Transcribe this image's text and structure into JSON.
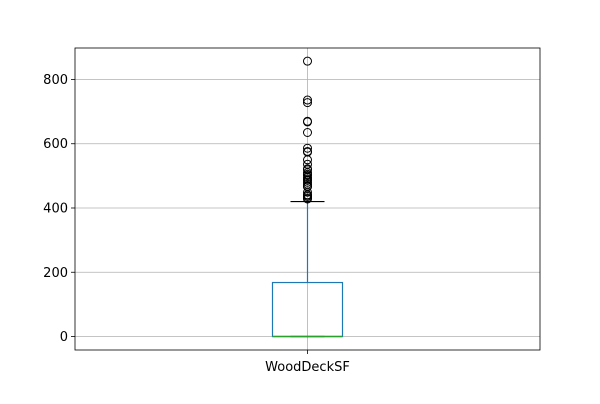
{
  "chart_data": {
    "type": "box",
    "title": "",
    "xlabel": "",
    "ylabel": "",
    "categories": [
      "WoodDeckSF"
    ],
    "ylim": [
      -42,
      898
    ],
    "yticks": [
      0,
      200,
      400,
      600,
      800
    ],
    "grid": true,
    "box": {
      "whisker_low": 0,
      "q1": 0,
      "median": 0,
      "q3": 168,
      "whisker_high": 420
    },
    "outliers": [
      857,
      736,
      728,
      670,
      668,
      635,
      586,
      576,
      574,
      550,
      536,
      522,
      519,
      510,
      505,
      501,
      495,
      490,
      486,
      480,
      474,
      468,
      466,
      449,
      441,
      440,
      436,
      431,
      428
    ],
    "colors": {
      "box": "#1f77b4",
      "median": "#2ca02c",
      "whisker": "#1f77b4",
      "cap": "#000000",
      "grid": "#b0b0b0",
      "axis": "#000000",
      "outlier_edge": "#000000"
    }
  }
}
